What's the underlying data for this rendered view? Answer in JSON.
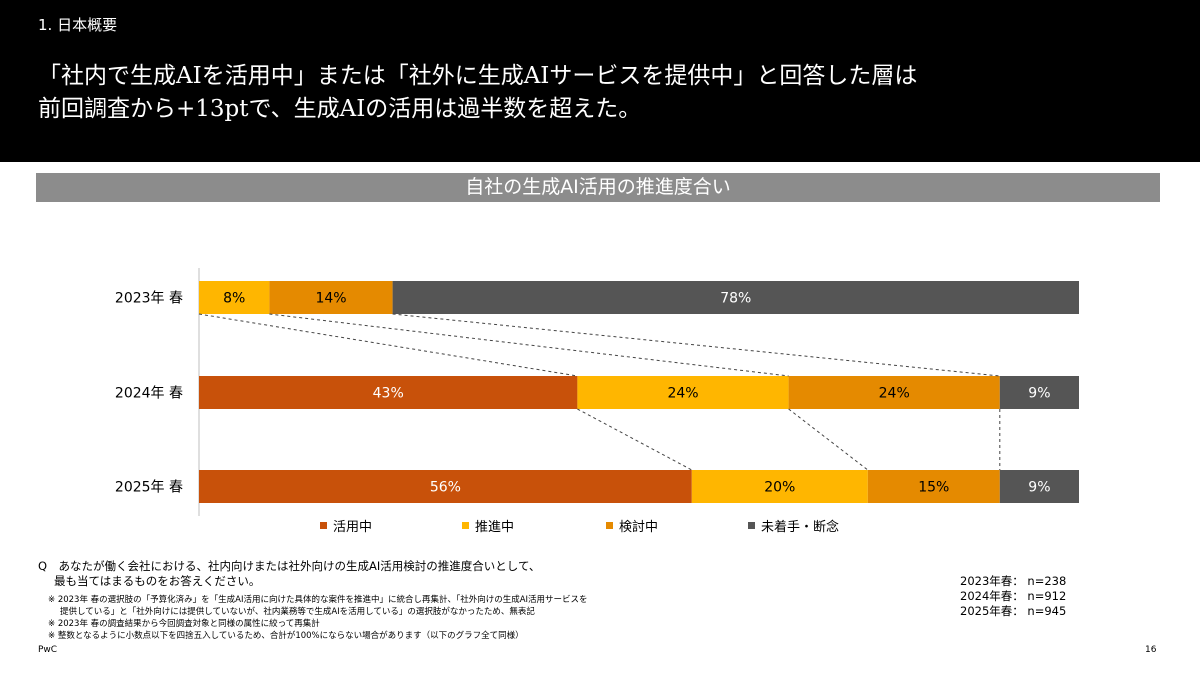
{
  "header": {
    "section": "1. 日本概要",
    "headline_line1": "「社内で生成AIを活用中」または「社外に生成AIサービスを提供中」と回答した層は",
    "headline_line2": "前回調査から+13ptで、生成AIの活用は過半数を超えた。"
  },
  "chart_data": {
    "type": "bar",
    "orientation": "horizontal",
    "stacked": true,
    "normalized": true,
    "title": "自社の生成AI活用の推進度合い",
    "categories": [
      "2023年 春",
      "2024年 春",
      "2025年 春"
    ],
    "series": [
      {
        "name": "活用中",
        "color": "#c8510a",
        "values": [
          0,
          43,
          56
        ]
      },
      {
        "name": "推進中",
        "color": "#ffb600",
        "values": [
          8,
          24,
          20
        ]
      },
      {
        "name": "検討中",
        "color": "#e58a00",
        "values": [
          14,
          24,
          15
        ]
      },
      {
        "name": "未着手・断念",
        "color": "#555555",
        "values": [
          78,
          9,
          9
        ]
      }
    ],
    "value_suffix": "%",
    "legend_position": "bottom",
    "connector_lines": "dashed"
  },
  "question": {
    "line1": "Q　あなたが働く会社における、社内向けまたは社外向けの生成AI活用検討の推進度合いとして、",
    "line2": "最も当てはまるものをお答えください。"
  },
  "notes": [
    "※ 2023年 春の選択肢の「予算化済み」を「生成AI活用に向けた具体的な案件を推進中」に統合し再集計、「社外向けの生成AI活用サービスを",
    "提供している」と「社外向けには提供していないが、社内業務等で生成AIを活用している」の選択肢がなかったため、無表記",
    "※ 2023年 春の調査結果から今回調査対象と同様の属性に絞って再集計",
    "※ 整数となるように小数点以下を四捨五入しているため、合計が100%にならない場合があります（以下のグラフ全て同様）"
  ],
  "samples": [
    "2023年春： n=238",
    "2024年春： n=912",
    "2025年春： n=945"
  ],
  "footer": {
    "brand": "PwC",
    "page": "16"
  }
}
